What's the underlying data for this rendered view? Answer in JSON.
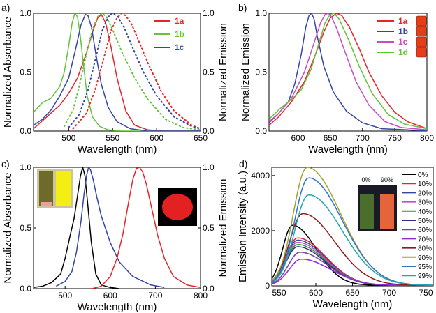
{
  "figure": {
    "name": "four-panel spectra figure"
  },
  "chart_data": [
    {
      "panel": "a)",
      "type": "line",
      "xlabel": "Wavelength (nm)",
      "ylabel": "Normalized Absorbance",
      "ylabel2": "Normalized Emission",
      "xlim": [
        460,
        650
      ],
      "ylim": [
        0,
        1.0
      ],
      "xticks": [
        "500",
        "550",
        "600",
        "650"
      ],
      "yticks": [
        "0.0",
        "0.5",
        "1.0"
      ],
      "yticks2": [
        "0.0",
        "0.5",
        "1.0"
      ],
      "legend": [
        "1a",
        "1b",
        "1c"
      ],
      "legend_position": "top-right",
      "series": [
        {
          "name": "1a",
          "color": "#e8242b",
          "style": "solid",
          "role": "absorbance",
          "x": [
            460,
            475,
            490,
            500,
            510,
            520,
            528,
            533,
            537,
            542,
            548,
            555,
            565,
            575,
            590,
            610,
            650
          ],
          "y": [
            0.02,
            0.12,
            0.22,
            0.32,
            0.45,
            0.66,
            0.86,
            0.96,
            0.99,
            0.92,
            0.72,
            0.45,
            0.17,
            0.05,
            0.01,
            0,
            0
          ]
        },
        {
          "name": "1b",
          "color": "#63c43c",
          "style": "solid",
          "role": "absorbance",
          "x": [
            460,
            470,
            480,
            490,
            495,
            500,
            504,
            507,
            510,
            513,
            517,
            521,
            527,
            535,
            545,
            560,
            650
          ],
          "y": [
            0.16,
            0.24,
            0.28,
            0.38,
            0.5,
            0.72,
            0.92,
            1.0,
            0.97,
            0.82,
            0.55,
            0.3,
            0.12,
            0.04,
            0.01,
            0,
            0
          ]
        },
        {
          "name": "1c",
          "color": "#3545a6",
          "style": "solid",
          "role": "absorbance",
          "x": [
            460,
            470,
            480,
            490,
            500,
            508,
            514,
            519,
            522,
            526,
            531,
            537,
            545,
            555,
            570,
            590,
            650
          ],
          "y": [
            0.05,
            0.1,
            0.18,
            0.3,
            0.45,
            0.7,
            0.9,
            0.99,
            0.98,
            0.88,
            0.65,
            0.4,
            0.2,
            0.08,
            0.02,
            0,
            0
          ]
        },
        {
          "name": "1a",
          "color": "#e8242b",
          "style": "dotted",
          "role": "emission",
          "x": [
            505,
            520,
            530,
            540,
            548,
            555,
            560,
            565,
            572,
            580,
            590,
            605,
            620,
            640,
            650
          ],
          "y": [
            0.02,
            0.15,
            0.35,
            0.62,
            0.85,
            0.96,
            1.0,
            0.98,
            0.9,
            0.76,
            0.58,
            0.34,
            0.17,
            0.05,
            0.02
          ]
        },
        {
          "name": "1b",
          "color": "#63c43c",
          "style": "dotted",
          "role": "emission",
          "x": [
            495,
            505,
            512,
            520,
            527,
            533,
            538,
            543,
            550,
            560,
            575,
            590,
            610,
            630,
            650
          ],
          "y": [
            0.04,
            0.18,
            0.38,
            0.65,
            0.86,
            0.97,
            1.0,
            0.97,
            0.86,
            0.68,
            0.45,
            0.27,
            0.1,
            0.03,
            0.01
          ]
        },
        {
          "name": "1c",
          "color": "#3545a6",
          "style": "dotted",
          "role": "emission",
          "x": [
            500,
            512,
            522,
            530,
            538,
            545,
            550,
            556,
            563,
            572,
            585,
            600,
            620,
            640,
            650
          ],
          "y": [
            0.03,
            0.14,
            0.35,
            0.6,
            0.85,
            0.97,
            1.0,
            0.97,
            0.88,
            0.72,
            0.5,
            0.3,
            0.12,
            0.04,
            0.02
          ]
        }
      ]
    },
    {
      "panel": "b)",
      "type": "line",
      "xlabel": "Wavelength (nm)",
      "ylabel": "Normalized Emission",
      "xlim": [
        555,
        800
      ],
      "ylim": [
        0,
        1.0
      ],
      "xticks": [
        "600",
        "650",
        "700",
        "750",
        "800"
      ],
      "yticks": [
        "0.0",
        "0.5",
        "1.0"
      ],
      "legend": [
        "1a",
        "1b",
        "1c",
        "1d"
      ],
      "legend_position": "top-right",
      "series": [
        {
          "name": "1a",
          "color": "#e8242b",
          "x": [
            555,
            570,
            590,
            610,
            625,
            640,
            650,
            660,
            668,
            680,
            695,
            710,
            730,
            750,
            770,
            800
          ],
          "y": [
            0.05,
            0.12,
            0.25,
            0.42,
            0.62,
            0.84,
            0.96,
            1.0,
            0.98,
            0.88,
            0.7,
            0.5,
            0.3,
            0.16,
            0.08,
            0.02
          ]
        },
        {
          "name": "1b",
          "color": "#3545a6",
          "x": [
            555,
            570,
            585,
            595,
            605,
            612,
            617,
            621,
            625,
            630,
            640,
            655,
            675,
            700,
            730,
            770,
            800
          ],
          "y": [
            0.07,
            0.15,
            0.25,
            0.4,
            0.65,
            0.88,
            0.98,
            1.0,
            0.95,
            0.8,
            0.55,
            0.33,
            0.17,
            0.07,
            0.02,
            0.01,
            0
          ]
        },
        {
          "name": "1c",
          "color": "#c94bc0",
          "x": [
            555,
            570,
            590,
            610,
            625,
            635,
            642,
            647,
            652,
            660,
            675,
            690,
            710,
            735,
            760,
            800
          ],
          "y": [
            0.08,
            0.15,
            0.28,
            0.5,
            0.75,
            0.92,
            0.99,
            1.0,
            0.97,
            0.87,
            0.64,
            0.42,
            0.22,
            0.08,
            0.03,
            0.01
          ]
        },
        {
          "name": "1d",
          "color": "#63c43c",
          "x": [
            555,
            570,
            590,
            605,
            620,
            632,
            642,
            650,
            656,
            664,
            678,
            695,
            715,
            740,
            765,
            800
          ],
          "y": [
            0.1,
            0.18,
            0.27,
            0.35,
            0.52,
            0.74,
            0.92,
            0.99,
            1.0,
            0.95,
            0.78,
            0.55,
            0.32,
            0.14,
            0.06,
            0.02
          ]
        }
      ]
    },
    {
      "panel": "c)",
      "type": "line",
      "xlabel": "Wavelength (nm)",
      "ylabel": "Normalized Absorbance",
      "ylabel2": "Normalized Emission",
      "xlim": [
        430,
        800
      ],
      "ylim": [
        0,
        1.0
      ],
      "xticks": [
        "500",
        "600",
        "700",
        "800"
      ],
      "yticks": [
        "0.0",
        "0.5",
        "1.0"
      ],
      "yticks2": [
        "0.0",
        "0.5",
        "1.0"
      ],
      "series": [
        {
          "color": "#000000",
          "role": "absorbance",
          "x": [
            430,
            450,
            470,
            490,
            500,
            510,
            520,
            528,
            534,
            539,
            544,
            550,
            558,
            568,
            580,
            600,
            620
          ],
          "y": [
            0.01,
            0.02,
            0.05,
            0.12,
            0.25,
            0.42,
            0.58,
            0.78,
            0.93,
            1.0,
            0.93,
            0.7,
            0.38,
            0.12,
            0.03,
            0.01,
            0
          ]
        },
        {
          "color": "#3545a6",
          "role": "excitation",
          "x": [
            480,
            500,
            515,
            525,
            535,
            542,
            548,
            552,
            556,
            562,
            570,
            580,
            600,
            620,
            650,
            690,
            720
          ],
          "y": [
            0.02,
            0.06,
            0.14,
            0.3,
            0.55,
            0.78,
            0.94,
            1.0,
            0.98,
            0.9,
            0.76,
            0.6,
            0.38,
            0.22,
            0.1,
            0.03,
            0.01
          ]
        },
        {
          "color": "#e8242b",
          "role": "emission",
          "x": [
            560,
            580,
            600,
            615,
            628,
            640,
            650,
            658,
            665,
            672,
            680,
            692,
            705,
            720,
            740,
            770,
            800
          ],
          "y": [
            0.0,
            0.02,
            0.1,
            0.25,
            0.45,
            0.7,
            0.9,
            0.99,
            1.0,
            0.96,
            0.86,
            0.66,
            0.44,
            0.25,
            0.1,
            0.03,
            0.01
          ]
        }
      ]
    },
    {
      "panel": "d)",
      "type": "line",
      "xlabel": "Wavelength (nm)",
      "ylabel": "Emission Intensity (a.u.)",
      "xlim": [
        540,
        760
      ],
      "ylim": [
        0,
        4300
      ],
      "xticks": [
        "550",
        "600",
        "650",
        "700",
        "750"
      ],
      "yticks": [
        "0",
        "2000",
        "4000"
      ],
      "legend_position": "right",
      "inset_labels": [
        "0%",
        "90%"
      ],
      "series": [
        {
          "name": "0%",
          "color": "#000000",
          "peak_x": 568,
          "peak_y": 2180,
          "width": 34
        },
        {
          "name": "10%",
          "color": "#e8242b",
          "peak_x": 575,
          "peak_y": 1720,
          "width": 40
        },
        {
          "name": "20%",
          "color": "#3545a6",
          "peak_x": 575,
          "peak_y": 1640,
          "width": 40
        },
        {
          "name": "30%",
          "color": "#c94bc0",
          "peak_x": 575,
          "peak_y": 1560,
          "width": 40
        },
        {
          "name": "40%",
          "color": "#2a9b2a",
          "peak_x": 575,
          "peak_y": 1480,
          "width": 40
        },
        {
          "name": "50%",
          "color": "#2c2c8f",
          "peak_x": 575,
          "peak_y": 1400,
          "width": 40
        },
        {
          "name": "60%",
          "color": "#7a3f8e",
          "peak_x": 578,
          "peak_y": 1200,
          "width": 40
        },
        {
          "name": "70%",
          "color": "#8b2be0",
          "peak_x": 580,
          "peak_y": 950,
          "width": 42
        },
        {
          "name": "80%",
          "color": "#8b1a1a",
          "peak_x": 582,
          "peak_y": 2600,
          "width": 46
        },
        {
          "name": "90%",
          "color": "#a3a32a",
          "peak_x": 588,
          "peak_y": 4280,
          "width": 48
        },
        {
          "name": "95%",
          "color": "#2f73c8",
          "peak_x": 590,
          "peak_y": 3900,
          "width": 48
        },
        {
          "name": "99%",
          "color": "#1fa8b0",
          "peak_x": 590,
          "peak_y": 3280,
          "width": 48
        }
      ]
    }
  ]
}
